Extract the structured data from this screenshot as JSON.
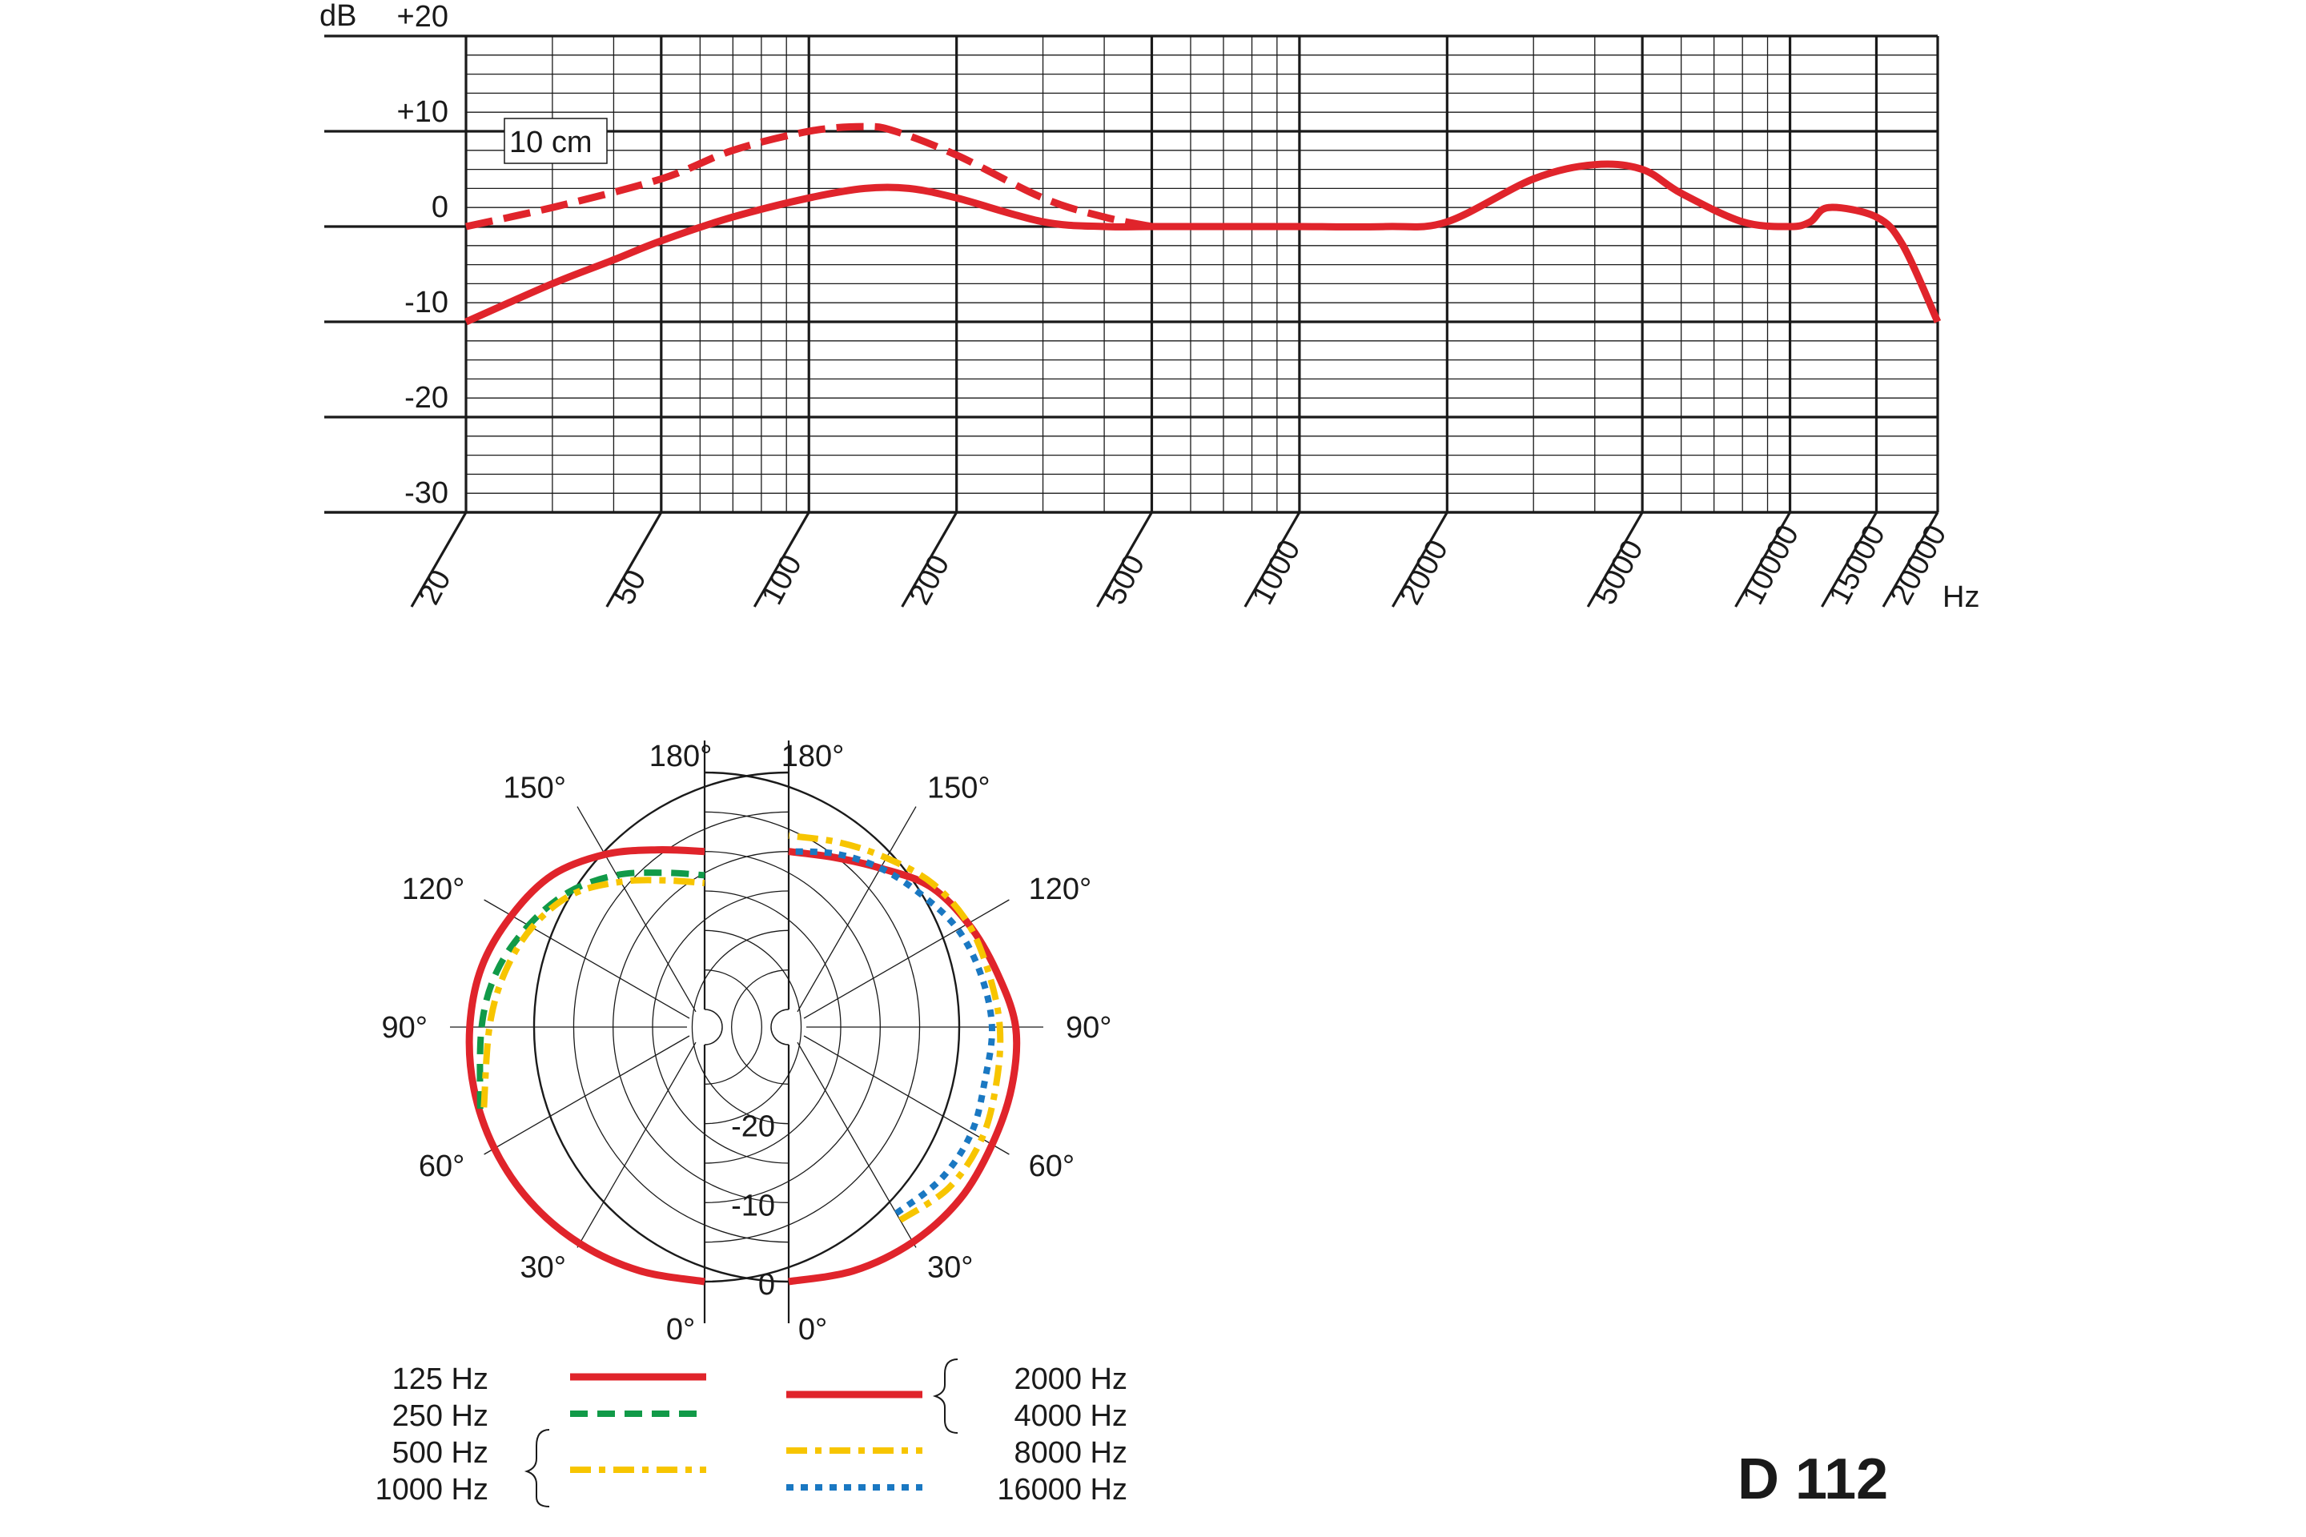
{
  "model": "D 112",
  "colors": {
    "red": "#e0242b",
    "green": "#119a48",
    "yellow": "#f7c500",
    "blue": "#1a78c2",
    "ink": "#1a1a1a"
  },
  "chart_data": [
    {
      "type": "line",
      "x_scale": "log",
      "xlabel": "Hz",
      "ylabel": "dB",
      "xlim": [
        20,
        20000
      ],
      "ylim": [
        -30,
        20
      ],
      "x_ticks": [
        {
          "v": 20,
          "label": "20"
        },
        {
          "v": 50,
          "label": "50"
        },
        {
          "v": 100,
          "label": "100"
        },
        {
          "v": 200,
          "label": "200"
        },
        {
          "v": 500,
          "label": "500"
        },
        {
          "v": 1000,
          "label": "1000"
        },
        {
          "v": 2000,
          "label": "2000"
        },
        {
          "v": 5000,
          "label": "5000"
        },
        {
          "v": 10000,
          "label": "10000"
        },
        {
          "v": 15000,
          "label": "15000"
        },
        {
          "v": 20000,
          "label": "20000"
        }
      ],
      "y_ticks": [
        {
          "v": 20,
          "label": "+20"
        },
        {
          "v": 10,
          "label": "+10"
        },
        {
          "v": 0,
          "label": "0"
        },
        {
          "v": -10,
          "label": "-10"
        },
        {
          "v": -20,
          "label": "-20"
        },
        {
          "v": -30,
          "label": "-30"
        }
      ],
      "grid": true,
      "annotation": "10 cm",
      "series": [
        {
          "style": "solid",
          "color": "#e0242b",
          "x": [
            20,
            30,
            40,
            50,
            70,
            100,
            130,
            160,
            200,
            300,
            400,
            500,
            700,
            1000,
            1500,
            2000,
            3000,
            4000,
            5000,
            6000,
            8000,
            10000,
            11000,
            12000,
            15000,
            17000,
            20000
          ],
          "y": [
            -10,
            -6,
            -3.5,
            -1.5,
            1,
            3,
            4,
            4,
            3,
            0.5,
            0,
            0,
            0,
            0,
            0,
            0.5,
            5,
            6.5,
            6,
            3.5,
            0.5,
            0,
            0.5,
            2,
            1,
            -2,
            -10
          ]
        },
        {
          "style": "dashed",
          "color": "#e0242b",
          "x": [
            20,
            30,
            50,
            70,
            100,
            130,
            150,
            200,
            300,
            400,
            500
          ],
          "y": [
            0,
            2,
            5,
            8,
            10,
            10.5,
            10,
            7.5,
            3,
            1,
            0
          ]
        }
      ]
    },
    {
      "type": "polar",
      "angle_labels": [
        "0°",
        "30°",
        "60°",
        "90°",
        "120°",
        "150°",
        "180°"
      ],
      "radial_labels": [
        "0",
        "-10",
        "-20"
      ],
      "legend": [
        {
          "label": "125 Hz",
          "style": "solid",
          "color": "#e0242b"
        },
        {
          "label": "250 Hz",
          "style": "dashed",
          "color": "#119a48"
        },
        {
          "label": "500 Hz",
          "style": "dashdot",
          "color": "#f7c500"
        },
        {
          "label": "1000 Hz",
          "style": "dashdot",
          "color": "#f7c500"
        },
        {
          "label": "2000 Hz",
          "style": "solid",
          "color": "#e0242b"
        },
        {
          "label": "4000 Hz",
          "style": "solid",
          "color": "#e0242b"
        },
        {
          "label": "8000 Hz",
          "style": "dashdot",
          "color": "#f7c500"
        },
        {
          "label": "16000 Hz",
          "style": "dotted",
          "color": "#1a78c2"
        }
      ],
      "left": [
        {
          "style": "solid",
          "color": "#e0242b",
          "angles": [
            0,
            15,
            30,
            45,
            60,
            75,
            90,
            105,
            120,
            135,
            150,
            165,
            180
          ],
          "values": [
            0,
            -0.3,
            -0.6,
            -1,
            -1.5,
            -2,
            -2.5,
            -3,
            -4,
            -5,
            -7,
            -9,
            -10
          ]
        },
        {
          "style": "dashed",
          "color": "#119a48",
          "angles": [
            70,
            90,
            105,
            120,
            135,
            150,
            165,
            180
          ],
          "values": [
            -2,
            -4,
            -5,
            -6.5,
            -8,
            -10,
            -12,
            -13
          ]
        },
        {
          "style": "dashdot",
          "color": "#f7c500",
          "angles": [
            70,
            90,
            105,
            120,
            135,
            150,
            165,
            180
          ],
          "values": [
            -2.5,
            -5,
            -6,
            -7,
            -8.5,
            -11,
            -13,
            -14
          ]
        }
      ],
      "right": [
        {
          "style": "solid",
          "color": "#e0242b",
          "angles": [
            0,
            15,
            30,
            45,
            60,
            75,
            90,
            105,
            120,
            135,
            150,
            165,
            180
          ],
          "values": [
            0,
            -0.3,
            -0.8,
            -1.5,
            -2.5,
            -3,
            -3.5,
            -5,
            -6,
            -7,
            -9,
            -10,
            -10
          ]
        },
        {
          "style": "dashdot",
          "color": "#f7c500",
          "angles": [
            30,
            45,
            60,
            75,
            90,
            105,
            120,
            135,
            150,
            165,
            180
          ],
          "values": [
            -4,
            -3.5,
            -4,
            -5,
            -5.5,
            -6,
            -6,
            -6.5,
            -7.5,
            -8,
            -8
          ]
        },
        {
          "style": "dotted",
          "color": "#1a78c2",
          "angles": [
            30,
            45,
            60,
            75,
            90,
            105,
            120,
            135,
            150,
            165,
            180
          ],
          "values": [
            -5,
            -5,
            -5.5,
            -6.5,
            -6.5,
            -7,
            -7.5,
            -8.5,
            -9,
            -9.5,
            -10
          ]
        }
      ]
    }
  ]
}
